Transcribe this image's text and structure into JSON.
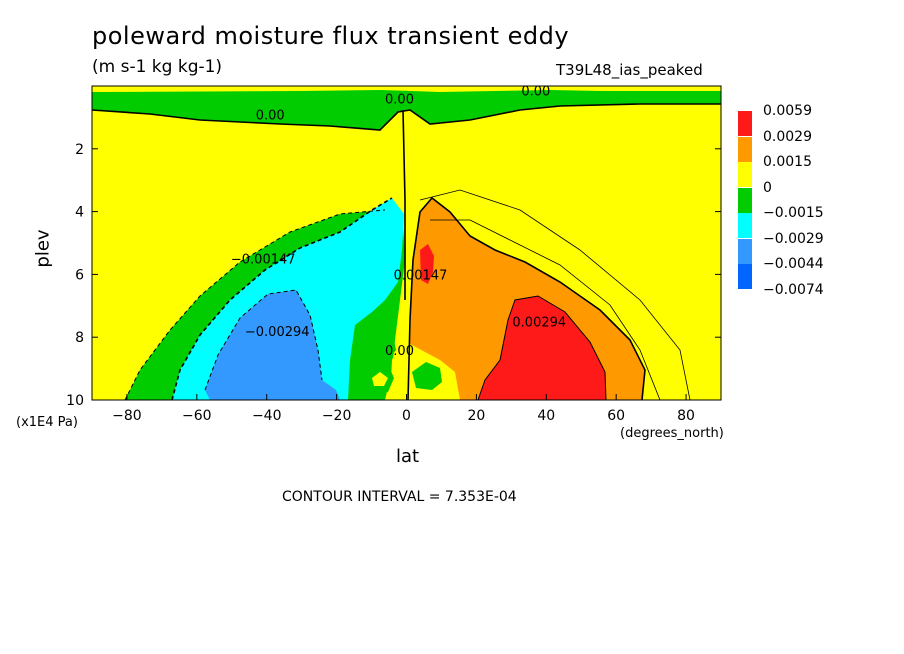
{
  "header": {
    "title": "poleward moisture flux transient eddy",
    "units": "(m s-1 kg kg-1)",
    "dataset": "T39L48_ias_peaked"
  },
  "footer": {
    "contour_interval": "CONTOUR INTERVAL = 7.353E-04"
  },
  "chart_data": {
    "type": "heatmap",
    "title": "poleward moisture flux transient eddy",
    "xlabel": "lat",
    "xunits": "(degrees_north)",
    "ylabel": "plev",
    "yunits": "(x1E4 Pa)",
    "xlim": [
      -90,
      90
    ],
    "ylim": [
      10,
      0
    ],
    "x_ticks": [
      -80,
      -60,
      -40,
      -20,
      0,
      20,
      40,
      60,
      80
    ],
    "y_ticks": [
      2,
      4,
      6,
      8,
      10
    ],
    "x_tick_labels": [
      "-80",
      "-60",
      "-40",
      "-20",
      "0",
      "20",
      "40",
      "60",
      "80"
    ],
    "y_tick_labels": [
      "2",
      "4",
      "6",
      "8",
      "10"
    ],
    "colorbar": {
      "labels": [
        "0.0059",
        "0.0029",
        "0.0015",
        "0",
        "-0.0015",
        "-0.0029",
        "-0.0044",
        "-0.0074"
      ],
      "colors": [
        "#ff1a1a",
        "#ff9900",
        "#ffff00",
        "#00cc00",
        "#00ffff",
        "#3399ff",
        "#0066ff"
      ]
    },
    "contour_labels": [
      {
        "text": "0.00",
        "x": -39,
        "y": 0.9
      },
      {
        "text": "0.00",
        "x": -2,
        "y": 0.4
      },
      {
        "text": "0.00",
        "x": 37,
        "y": 0.15
      },
      {
        "text": "-0.00147",
        "x": -41,
        "y": 5.5
      },
      {
        "text": "-0.00294",
        "x": -37,
        "y": 7.8
      },
      {
        "text": "0.00",
        "x": -2,
        "y": 8.4
      },
      {
        "text": "0.00147",
        "x": 4,
        "y": 6.0
      },
      {
        "text": "0.00294",
        "x": 38,
        "y": 7.5
      }
    ],
    "regions": [
      {
        "level": "0 to 0.0015",
        "description": "background positive"
      },
      {
        "level": "-0.0015 to 0",
        "lat_range": [
          -90,
          90
        ],
        "plev_range": [
          0,
          1
        ]
      },
      {
        "level": "-0.0029 to -0.0015",
        "lat_range": [
          -65,
          -3
        ],
        "plev_range": [
          3.5,
          10
        ]
      },
      {
        "level": "-0.0044 to -0.0029",
        "lat_range": [
          -50,
          -25
        ],
        "plev_range": [
          6.5,
          10
        ]
      },
      {
        "level": "0.0015 to 0.0029",
        "lat_range": [
          3,
          60
        ],
        "plev_range": [
          3,
          10
        ]
      },
      {
        "level": "0.0029 to 0.0059",
        "lat_range": [
          27,
          55
        ],
        "plev_range": [
          6.5,
          10
        ]
      },
      {
        "level": "0.0029 to 0.0059",
        "lat_range": [
          4,
          8
        ],
        "plev_range": [
          5,
          6.2
        ]
      }
    ]
  }
}
